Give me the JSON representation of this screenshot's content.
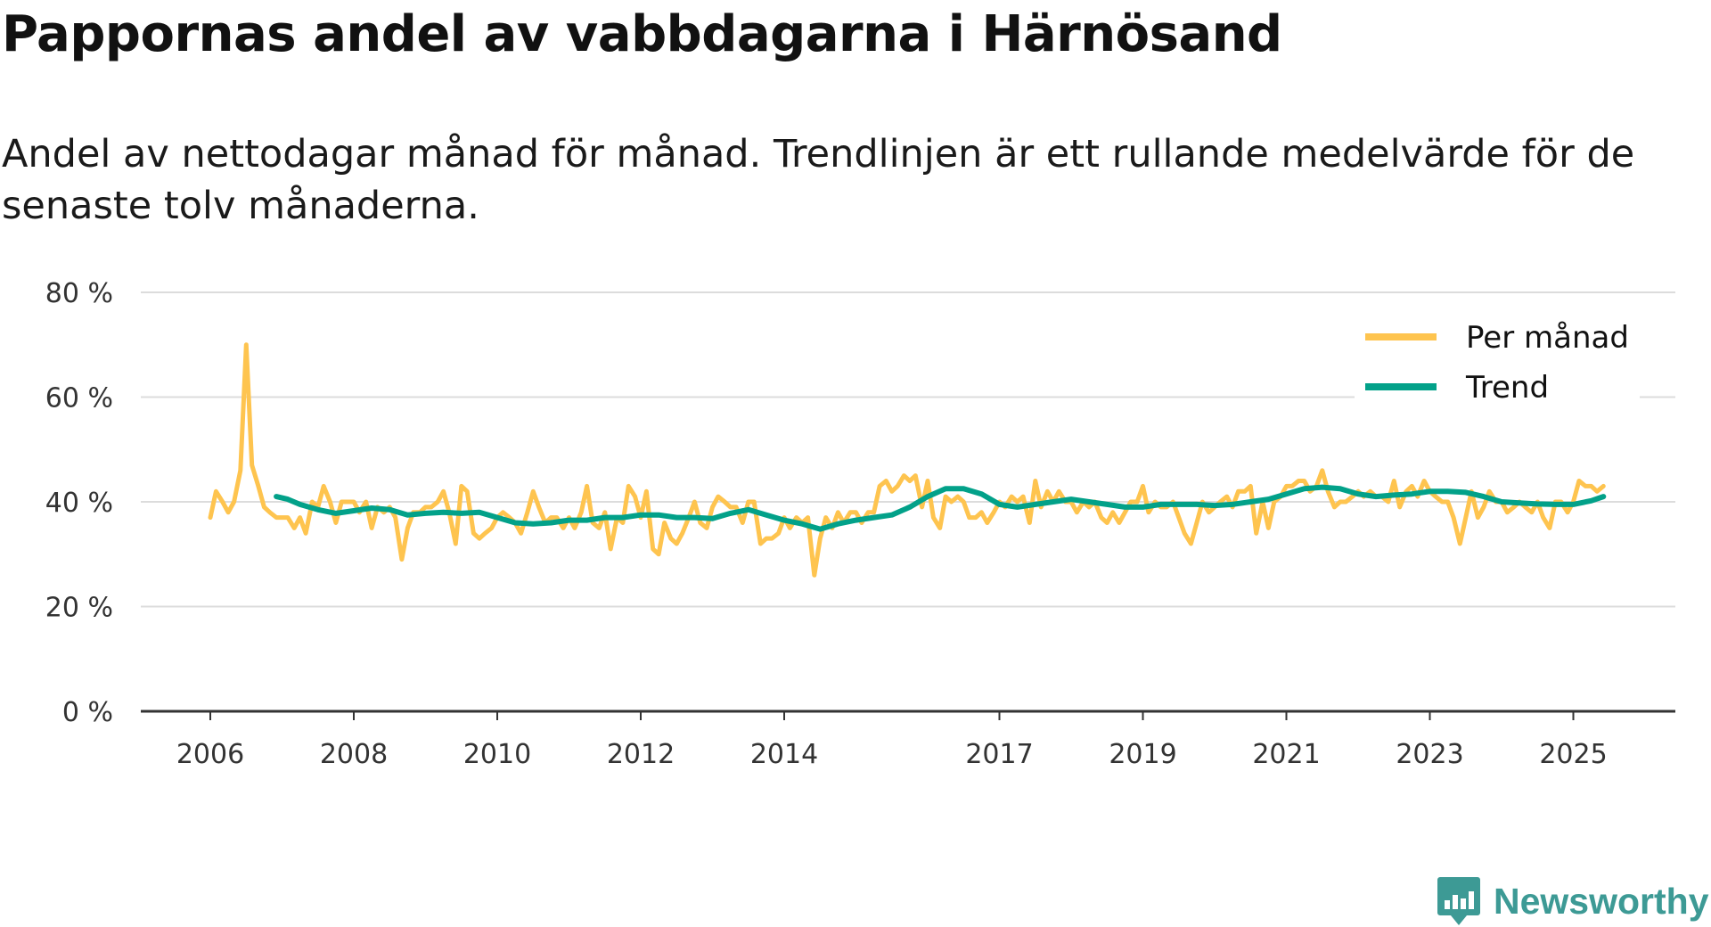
{
  "chart_data": {
    "type": "line",
    "title": "Pappornas andel av vabbdagarna i Härnösand",
    "subtitle": "Andel av nettodagar månad för månad. Trendlinjen är ett rullande medelvärde för de senaste tolv månaderna.",
    "xlabel": "",
    "ylabel": "",
    "ylim": [
      0,
      80
    ],
    "xlim": [
      2006,
      2026.4
    ],
    "y_ticks": [
      0,
      20,
      40,
      60,
      80
    ],
    "y_tick_labels": [
      "0 %",
      "20 %",
      "40 %",
      "60 %",
      "80 %"
    ],
    "x_ticks": [
      2006,
      2008,
      2010,
      2012,
      2014,
      2017,
      2019,
      2021,
      2023,
      2025
    ],
    "x_tick_labels": [
      "2006",
      "2008",
      "2010",
      "2012",
      "2014",
      "2017",
      "2019",
      "2021",
      "2023",
      "2025"
    ],
    "grid": true,
    "legend": "top-right",
    "series": [
      {
        "name": "Per månad",
        "color": "#fec44f",
        "x": [
          2006.0,
          2006.08,
          2006.17,
          2006.25,
          2006.33,
          2006.42,
          2006.5,
          2006.58,
          2006.67,
          2006.75,
          2006.83,
          2006.92,
          2007.0,
          2007.08,
          2007.17,
          2007.25,
          2007.33,
          2007.42,
          2007.5,
          2007.58,
          2007.67,
          2007.75,
          2007.83,
          2007.92,
          2008.0,
          2008.08,
          2008.17,
          2008.25,
          2008.33,
          2008.42,
          2008.5,
          2008.58,
          2008.67,
          2008.75,
          2008.83,
          2008.92,
          2009.0,
          2009.08,
          2009.17,
          2009.25,
          2009.33,
          2009.42,
          2009.5,
          2009.58,
          2009.67,
          2009.75,
          2009.83,
          2009.92,
          2010.0,
          2010.08,
          2010.17,
          2010.25,
          2010.33,
          2010.42,
          2010.5,
          2010.58,
          2010.67,
          2010.75,
          2010.83,
          2010.92,
          2011.0,
          2011.08,
          2011.17,
          2011.25,
          2011.33,
          2011.42,
          2011.5,
          2011.58,
          2011.67,
          2011.75,
          2011.83,
          2011.92,
          2012.0,
          2012.08,
          2012.17,
          2012.25,
          2012.33,
          2012.42,
          2012.5,
          2012.58,
          2012.67,
          2012.75,
          2012.83,
          2012.92,
          2013.0,
          2013.08,
          2013.17,
          2013.25,
          2013.33,
          2013.42,
          2013.5,
          2013.58,
          2013.67,
          2013.75,
          2013.83,
          2013.92,
          2014.0,
          2014.08,
          2014.17,
          2014.25,
          2014.33,
          2014.42,
          2014.5,
          2014.58,
          2014.67,
          2014.75,
          2014.83,
          2014.92,
          2015.0,
          2015.08,
          2015.17,
          2015.25,
          2015.33,
          2015.42,
          2015.5,
          2015.58,
          2015.67,
          2015.75,
          2015.83,
          2015.92,
          2016.0,
          2016.08,
          2016.17,
          2016.25,
          2016.33,
          2016.42,
          2016.5,
          2016.58,
          2016.67,
          2016.75,
          2016.83,
          2016.92,
          2017.0,
          2017.08,
          2017.17,
          2017.25,
          2017.33,
          2017.42,
          2017.5,
          2017.58,
          2017.67,
          2017.75,
          2017.83,
          2017.92,
          2018.0,
          2018.08,
          2018.17,
          2018.25,
          2018.33,
          2018.42,
          2018.5,
          2018.58,
          2018.67,
          2018.75,
          2018.83,
          2018.92,
          2019.0,
          2019.08,
          2019.17,
          2019.25,
          2019.33,
          2019.42,
          2019.5,
          2019.58,
          2019.67,
          2019.75,
          2019.83,
          2019.92,
          2020.0,
          2020.08,
          2020.17,
          2020.25,
          2020.33,
          2020.42,
          2020.5,
          2020.58,
          2020.67,
          2020.75,
          2020.83,
          2020.92,
          2021.0,
          2021.08,
          2021.17,
          2021.25,
          2021.33,
          2021.42,
          2021.5,
          2021.58,
          2021.67,
          2021.75,
          2021.83,
          2021.92,
          2022.0,
          2022.08,
          2022.17,
          2022.25,
          2022.33,
          2022.42,
          2022.5,
          2022.58,
          2022.67,
          2022.75,
          2022.83,
          2022.92,
          2023.0,
          2023.08,
          2023.17,
          2023.25,
          2023.33,
          2023.42,
          2023.5,
          2023.58,
          2023.67,
          2023.75,
          2023.83,
          2023.92,
          2024.0,
          2024.08,
          2024.17,
          2024.25,
          2024.33,
          2024.42,
          2024.5,
          2024.58,
          2024.67,
          2024.75,
          2024.83,
          2024.92,
          2025.0,
          2025.08,
          2025.17,
          2025.25,
          2025.33,
          2025.42
        ],
        "values": [
          37,
          42,
          40,
          38,
          40,
          46,
          70,
          47,
          43,
          39,
          38,
          37,
          37,
          37,
          35,
          37,
          34,
          40,
          39,
          43,
          40,
          36,
          40,
          40,
          40,
          38,
          40,
          35,
          39,
          38,
          39,
          37,
          29,
          35,
          38,
          38,
          39,
          39,
          40,
          42,
          38,
          32,
          43,
          42,
          34,
          33,
          34,
          35,
          37,
          38,
          37,
          36,
          34,
          38,
          42,
          39,
          36,
          37,
          37,
          35,
          37,
          35,
          38,
          43,
          36,
          35,
          38,
          31,
          37,
          36,
          43,
          41,
          37,
          42,
          31,
          30,
          36,
          33,
          32,
          34,
          37,
          40,
          36,
          35,
          39,
          41,
          40,
          39,
          39,
          36,
          40,
          40,
          32,
          33,
          33,
          34,
          37,
          35,
          37,
          36,
          37,
          26,
          33,
          37,
          35,
          38,
          36,
          38,
          38,
          36,
          38,
          38,
          43,
          44,
          42,
          43,
          45,
          44,
          45,
          39,
          44,
          37,
          35,
          41,
          40,
          41,
          40,
          37,
          37,
          38,
          36,
          38,
          40,
          39,
          41,
          40,
          41,
          36,
          44,
          39,
          42,
          40,
          42,
          40,
          40,
          38,
          40,
          39,
          40,
          37,
          36,
          38,
          36,
          38,
          40,
          40,
          43,
          38,
          40,
          39,
          39,
          40,
          37,
          34,
          32,
          36,
          40,
          38,
          39,
          40,
          41,
          39,
          42,
          42,
          43,
          34,
          40,
          35,
          40,
          41,
          43,
          43,
          44,
          44,
          42,
          43,
          46,
          42,
          39,
          40,
          40,
          41,
          42,
          41,
          42,
          41,
          41,
          40,
          44,
          39,
          42,
          43,
          41,
          44,
          42,
          41,
          40,
          40,
          37,
          32,
          37,
          42,
          37,
          39,
          42,
          40,
          40,
          38,
          39,
          40,
          39,
          38,
          40,
          37,
          35,
          40,
          40,
          38,
          40,
          44,
          43,
          43,
          42,
          43
        ]
      },
      {
        "name": "Trend",
        "color": "#02a189",
        "x": [
          2006.92,
          2007.08,
          2007.25,
          2007.5,
          2007.75,
          2008.0,
          2008.25,
          2008.5,
          2008.75,
          2009.0,
          2009.25,
          2009.5,
          2009.75,
          2010.0,
          2010.25,
          2010.5,
          2010.75,
          2011.0,
          2011.25,
          2011.5,
          2011.75,
          2012.0,
          2012.25,
          2012.5,
          2012.75,
          2013.0,
          2013.25,
          2013.5,
          2013.75,
          2014.0,
          2014.25,
          2014.5,
          2014.75,
          2015.0,
          2015.25,
          2015.5,
          2015.75,
          2016.0,
          2016.25,
          2016.5,
          2016.75,
          2017.0,
          2017.25,
          2017.5,
          2017.75,
          2018.0,
          2018.25,
          2018.5,
          2018.75,
          2019.0,
          2019.25,
          2019.5,
          2019.75,
          2020.0,
          2020.25,
          2020.5,
          2020.75,
          2021.0,
          2021.25,
          2021.5,
          2021.75,
          2022.0,
          2022.25,
          2022.5,
          2022.75,
          2023.0,
          2023.25,
          2023.5,
          2023.75,
          2024.0,
          2024.25,
          2024.5,
          2024.75,
          2025.0,
          2025.25,
          2025.42
        ],
        "values": [
          41,
          40.5,
          39.5,
          38.5,
          37.8,
          38.3,
          38.8,
          38.5,
          37.5,
          37.8,
          38,
          37.8,
          38,
          37,
          36,
          35.8,
          36,
          36.5,
          36.5,
          37,
          37,
          37.5,
          37.5,
          37,
          37,
          36.8,
          37.8,
          38.5,
          37.5,
          36.5,
          35.8,
          34.8,
          35.8,
          36.5,
          37,
          37.5,
          39,
          41,
          42.5,
          42.5,
          41.5,
          39.5,
          39,
          39.5,
          40,
          40.5,
          40,
          39.5,
          39,
          39,
          39.5,
          39.5,
          39.5,
          39.3,
          39.5,
          40,
          40.5,
          41.5,
          42.5,
          42.8,
          42.5,
          41.5,
          41,
          41.3,
          41.5,
          42,
          42,
          41.8,
          41,
          40,
          39.8,
          39.6,
          39.5,
          39.5,
          40.2,
          41
        ]
      }
    ]
  },
  "brand": {
    "name": "Newsworthy"
  }
}
